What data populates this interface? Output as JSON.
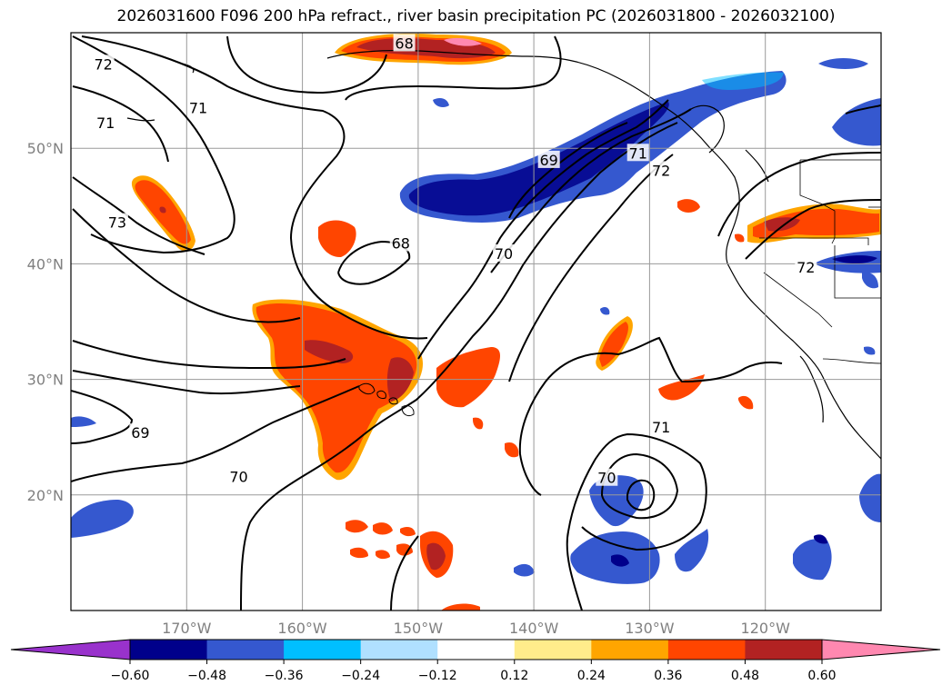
{
  "title": "2026031600 F096 200 hPa refract., river basin precipitation PC (2026031800 - 2026032100)",
  "map": {
    "extent": {
      "lon_min": -180,
      "lon_max": -110,
      "lat_min": 10,
      "lat_max": 60
    },
    "lon_ticks": [
      {
        "lon": -170,
        "label": "170°W"
      },
      {
        "lon": -160,
        "label": "160°W"
      },
      {
        "lon": -150,
        "label": "150°W"
      },
      {
        "lon": -140,
        "label": "140°W"
      },
      {
        "lon": -130,
        "label": "130°W"
      },
      {
        "lon": -120,
        "label": "120°W"
      }
    ],
    "lat_ticks": [
      {
        "lat": 50,
        "label": "50°N"
      },
      {
        "lat": 40,
        "label": "40°N"
      },
      {
        "lat": 30,
        "label": "30°N"
      },
      {
        "lat": 20,
        "label": "20°N"
      }
    ],
    "contour_labels": [
      {
        "text": "72",
        "lon": -177.2,
        "lat": 57.3
      },
      {
        "text": "71",
        "lon": -169.0,
        "lat": 53.5
      },
      {
        "text": "71",
        "lon": -177.0,
        "lat": 52.2
      },
      {
        "text": "73",
        "lon": -176.0,
        "lat": 43.6
      },
      {
        "text": "68",
        "lon": -151.5,
        "lat": 41.8
      },
      {
        "text": "68",
        "lon": -151.2,
        "lat": 59.1
      },
      {
        "text": "69",
        "lon": -138.7,
        "lat": 49.0
      },
      {
        "text": "70",
        "lon": -142.6,
        "lat": 40.9
      },
      {
        "text": "71",
        "lon": -131.0,
        "lat": 49.6
      },
      {
        "text": "72",
        "lon": -129.0,
        "lat": 48.1
      },
      {
        "text": "72",
        "lon": -116.5,
        "lat": 39.7
      },
      {
        "text": "69",
        "lon": -174.0,
        "lat": 25.4
      },
      {
        "text": "70",
        "lon": -165.5,
        "lat": 21.6
      },
      {
        "text": "71",
        "lon": -129.0,
        "lat": 25.9
      },
      {
        "text": "70",
        "lon": -133.7,
        "lat": 21.5
      }
    ]
  },
  "colorbar": {
    "ticks": [
      "−0.60",
      "−0.48",
      "−0.36",
      "−0.24",
      "−0.12",
      "0.12",
      "0.24",
      "0.36",
      "0.48",
      "0.60"
    ],
    "under_color": "#9932cc",
    "over_color": "#ff88b0",
    "colors": [
      "#00008b",
      "#3558cf",
      "#00bfff",
      "#b0e0ff",
      "#ffffff",
      "#ffec8b",
      "#ffa500",
      "#ff4500",
      "#b22222",
      "#ff88b0"
    ]
  },
  "palette": {
    "neg_strong": "#00008b",
    "neg_mid": "#3558cf",
    "neg_light": "#00bfff",
    "neg_pale": "#b0e0ff",
    "pos_pale": "#ffec8b",
    "pos_light": "#ffa500",
    "pos_mid": "#ff4500",
    "pos_strong": "#b22222",
    "pos_max": "#ff88b0"
  }
}
